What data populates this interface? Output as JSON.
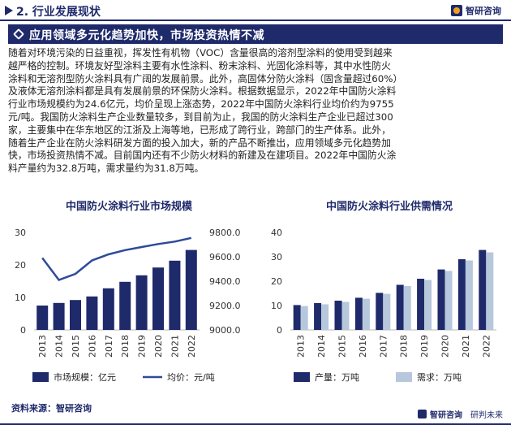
{
  "header": {
    "section_title": "2. 行业发展现状",
    "logo_text": "智研咨询"
  },
  "banner": {
    "title": "应用领域多元化趋势加快，市场投资热情不减"
  },
  "body": {
    "lines": [
      "随着对环境污染的日益重视，挥发性有机物（VOC）含量很高的溶剂型涂料的使用受到越来",
      "越严格的控制。环境友好型涂料主要有水性涂料、粉末涂料、光固化涂料等，其中水性防火",
      "涂料和无溶剂型防火涂料具有广阔的发展前景。此外，高固体分防火涂料（固含量超过60%）",
      "及液体无溶剂涂料都是具有发展前景的环保防火涂料。根据数据显示，2022年中国防火涂料",
      "行业市场规模约为24.6亿元，均价呈现上涨态势，2022年中国防火涂料行业均价约为9755",
      "元/吨。我国防火涂料生产企业数量较多，到目前为止，我国的防火涂料生产企业已超过300",
      "家，主要集中在华东地区的江浙及上海等地，已形成了跨行业，跨部门的生产体系。此外，",
      "随着生产企业在防火涂料研发方面的投入加大，新的产品不断推出，应用领域多元化趋势加",
      "快，市场投资热情不减。目前国内还有不少防火材料的新建及在建项目。2022年中国防火涂",
      "料产量约为32.8万吨，需求量约为31.8万吨。"
    ]
  },
  "chart_data": [
    {
      "type": "bar",
      "title": "中国防火涂料行业市场规模",
      "categories": [
        "2013",
        "2014",
        "2015",
        "2016",
        "2017",
        "2018",
        "2019",
        "2020",
        "2021",
        "2022"
      ],
      "series": [
        {
          "name": "市场规模：亿元",
          "type": "bar",
          "axis": "left",
          "values": [
            7.5,
            8.3,
            9.2,
            10.3,
            12.8,
            14.8,
            16.8,
            19.2,
            21.3,
            24.6
          ]
        },
        {
          "name": "均价：元/吨",
          "type": "line",
          "axis": "right",
          "values": [
            9590,
            9410,
            9460,
            9570,
            9620,
            9655,
            9680,
            9705,
            9725,
            9755
          ]
        }
      ],
      "left_axis": {
        "ylim": [
          0,
          30
        ],
        "ticks": [
          "0",
          "10",
          "20",
          "30"
        ]
      },
      "right_axis": {
        "ylim": [
          9000,
          9800
        ],
        "ticks": [
          "9000.0",
          "9200.0",
          "9400.0",
          "9600.0",
          "9800.0"
        ]
      },
      "colors": {
        "bar": "#1f2a6b",
        "line": "#2e4a9a"
      },
      "legend": "bottom"
    },
    {
      "type": "bar",
      "title": "中国防火涂料行业供需情况",
      "categories": [
        "2013",
        "2014",
        "2015",
        "2016",
        "2017",
        "2018",
        "2019",
        "2020",
        "2021",
        "2022"
      ],
      "series": [
        {
          "name": "产量：万吨",
          "values": [
            10.2,
            11.0,
            12.0,
            13.2,
            15.2,
            18.5,
            21.0,
            24.8,
            29.0,
            32.8
          ]
        },
        {
          "name": "需求：万吨",
          "values": [
            9.8,
            10.5,
            11.5,
            12.8,
            14.8,
            18.0,
            20.5,
            24.2,
            28.5,
            31.8
          ]
        }
      ],
      "ylim": [
        0,
        40
      ],
      "ticks": [
        "0",
        "10",
        "20",
        "30",
        "40"
      ],
      "colors": {
        "production": "#1f2a6b",
        "demand": "#b7c7dc"
      },
      "legend": "bottom"
    }
  ],
  "footer": {
    "source": "资料来源：智研咨询",
    "brand": "智研咨询",
    "slogan": "研判未来"
  }
}
